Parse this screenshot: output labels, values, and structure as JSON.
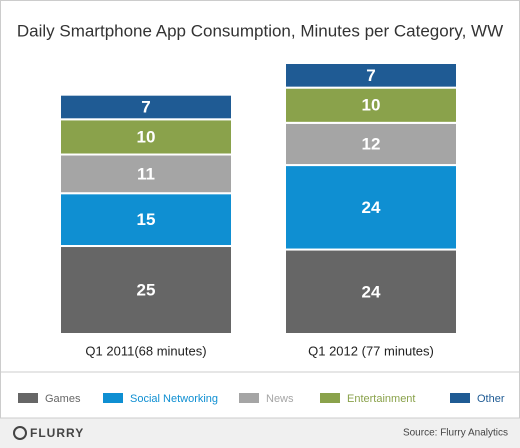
{
  "chart_data": {
    "type": "stacked_bar",
    "title": "Daily Smartphone App Consumption, Minutes per Category, WW",
    "categories": [
      "Q1 2011(68 minutes)",
      "Q1 2012 (77 minutes)"
    ],
    "series": [
      {
        "name": "Games",
        "color": "#666666",
        "values": [
          25,
          24
        ]
      },
      {
        "name": "Social Networking",
        "color": "#0f8fd2",
        "values": [
          15,
          24
        ]
      },
      {
        "name": "News",
        "color": "#a5a5a5",
        "values": [
          11,
          12
        ]
      },
      {
        "name": "Entertainment",
        "color": "#8aa24b",
        "values": [
          10,
          10
        ]
      },
      {
        "name": "Other",
        "color": "#1f5b94",
        "values": [
          7,
          7
        ]
      }
    ],
    "legend": "bottom",
    "source": "Source: Flurry Analytics",
    "logo": "FLURRY"
  }
}
